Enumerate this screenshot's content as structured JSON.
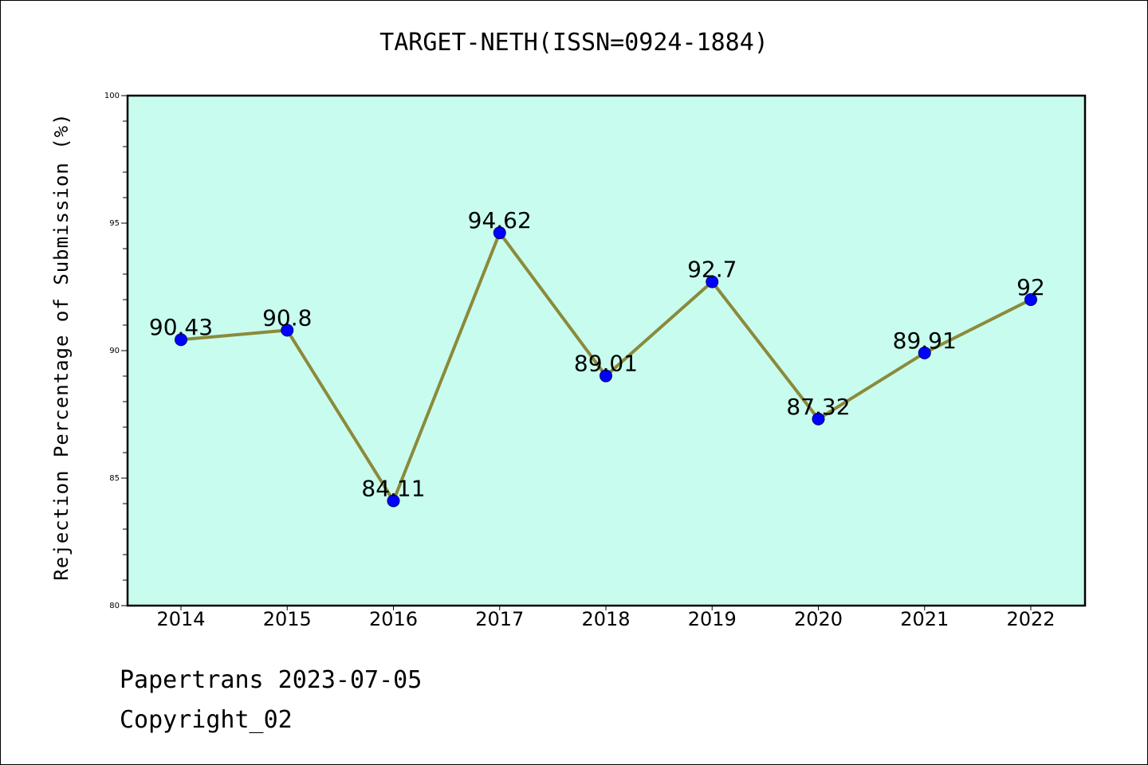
{
  "footer": {
    "line1": "Papertrans 2023-07-05",
    "line2": "Copyright_02"
  },
  "chart_data": {
    "type": "line",
    "title": "TARGET-NETH(ISSN=0924-1884)",
    "xlabel": "",
    "ylabel": "Rejection Percentage of Submission (%)",
    "categories": [
      "2014",
      "2015",
      "2016",
      "2017",
      "2018",
      "2019",
      "2020",
      "2021",
      "2022"
    ],
    "series": [
      {
        "values": [
          90.43,
          90.8,
          84.11,
          94.62,
          89.01,
          92.7,
          87.32,
          89.91,
          92
        ],
        "data_labels": [
          "90.43",
          "90.8",
          "84.11",
          "94.62",
          "89.01",
          "92.7",
          "87.32",
          "89.91",
          "92"
        ]
      }
    ],
    "ylim": [
      80,
      100
    ],
    "yticks": [
      "80",
      "85",
      "90",
      "95",
      "100"
    ],
    "grid": false,
    "legend": "none",
    "colors": {
      "plot_background": "#c8fcee",
      "line": "#8b8a3a",
      "marker": "#0000ff"
    }
  }
}
